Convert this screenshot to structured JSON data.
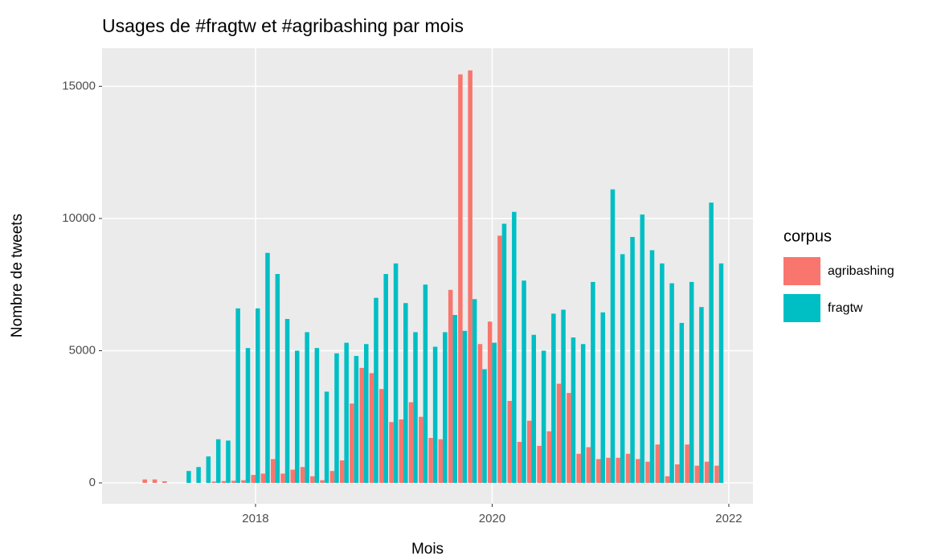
{
  "chart_data": {
    "type": "bar",
    "title": "Usages de #fragtw et #agribashing par mois",
    "x_label": "Mois",
    "y_label": "Nombre de tweets",
    "legend_title": "corpus",
    "x": [
      2017.083,
      2017.167,
      2017.25,
      2017.333,
      2017.417,
      2017.5,
      2017.583,
      2017.667,
      2017.75,
      2017.833,
      2017.917,
      2018,
      2018.083,
      2018.167,
      2018.25,
      2018.333,
      2018.417,
      2018.5,
      2018.583,
      2018.667,
      2018.75,
      2018.833,
      2018.917,
      2019,
      2019.083,
      2019.167,
      2019.25,
      2019.333,
      2019.417,
      2019.5,
      2019.583,
      2019.667,
      2019.75,
      2019.833,
      2019.917,
      2020,
      2020.083,
      2020.167,
      2020.25,
      2020.333,
      2020.417,
      2020.5,
      2020.583,
      2020.667,
      2020.75,
      2020.833,
      2020.917,
      2021,
      2021.083,
      2021.167,
      2021.25,
      2021.333,
      2021.417,
      2021.5,
      2021.583,
      2021.667,
      2021.75,
      2021.833,
      2021.917
    ],
    "series": [
      {
        "name": "agribashing",
        "color": "#F8766D",
        "values": [
          130,
          130,
          60,
          null,
          null,
          null,
          null,
          50,
          70,
          80,
          100,
          300,
          350,
          900,
          350,
          500,
          600,
          250,
          100,
          450,
          850,
          3000,
          4350,
          4150,
          3550,
          2300,
          2400,
          3050,
          2500,
          1700,
          1650,
          7300,
          15450,
          15600,
          5250,
          6100,
          9350,
          3100,
          1550,
          2350,
          1400,
          1950,
          3750,
          3400,
          1100,
          1350,
          900,
          950,
          950,
          1100,
          900,
          800,
          1450,
          250,
          700,
          1450,
          650,
          800,
          650
        ]
      },
      {
        "name": "fragtw",
        "color": "#00BFC4",
        "values": [
          null,
          null,
          null,
          null,
          450,
          600,
          1000,
          1650,
          1600,
          6600,
          5100,
          6600,
          8700,
          7900,
          6200,
          5000,
          5700,
          5100,
          3450,
          4900,
          5300,
          4800,
          5250,
          7000,
          7900,
          8300,
          6800,
          5700,
          7500,
          5150,
          5700,
          6350,
          5750,
          6950,
          4300,
          5300,
          9800,
          10250,
          7650,
          5600,
          5000,
          6400,
          6550,
          5500,
          5250,
          7600,
          6450,
          11100,
          8650,
          9300,
          10150,
          8800,
          8300,
          7550,
          6050,
          7600,
          6650,
          10600,
          8300
        ]
      }
    ],
    "xlim": [
      2016.703,
      2022.204
    ],
    "xticks": [
      2018,
      2020,
      2022
    ],
    "ylim": [
      -790,
      16440
    ],
    "yticks": [
      0,
      5000,
      10000,
      15000
    ],
    "grid": true,
    "legend": "right"
  }
}
